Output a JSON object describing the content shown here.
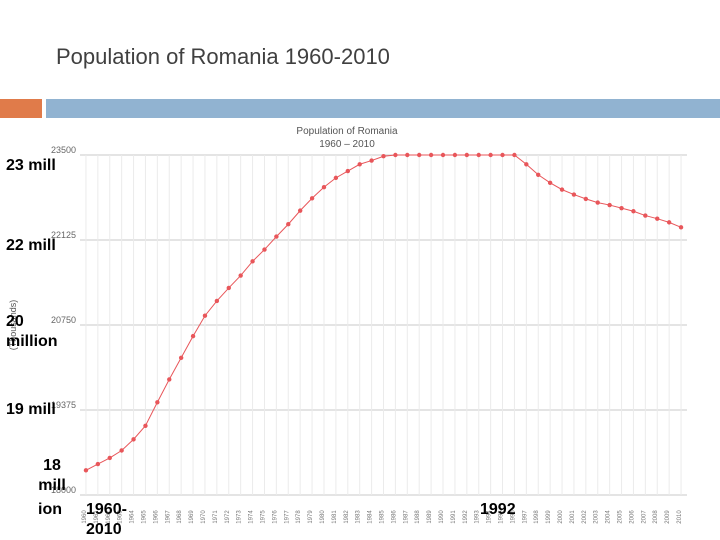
{
  "slide": {
    "title": "Population of Romania 1960-2010",
    "accent_orange": "#E07B4A",
    "accent_blue": "#91B3D1"
  },
  "overlay_labels": {
    "l23": "23 mill",
    "l22": "22 mill",
    "l20": "20 million",
    "l19": "19 mill",
    "l18": "18 mill",
    "l18_suffix": "ion",
    "l1960": "1960-2010",
    "l1992": "1992"
  },
  "chart_data": {
    "type": "line",
    "title": "Population of Romania",
    "subtitle": "1960 – 2010",
    "ylabel": "(Thousands)",
    "xlabel": "",
    "ylim": [
      18000,
      23500
    ],
    "yticks": [
      18000,
      19375,
      20750,
      22125,
      23500
    ],
    "ytick_labels": [
      "18000",
      "19375",
      "20750",
      "22125",
      "23500"
    ],
    "grid": true,
    "line_color": "#E8565A",
    "x": [
      1960,
      1961,
      1962,
      1963,
      1964,
      1965,
      1966,
      1967,
      1968,
      1969,
      1970,
      1971,
      1972,
      1973,
      1974,
      1975,
      1976,
      1977,
      1978,
      1979,
      1980,
      1981,
      1982,
      1983,
      1984,
      1985,
      1986,
      1987,
      1988,
      1989,
      1990,
      1991,
      1992,
      1993,
      1994,
      1995,
      1996,
      1997,
      1998,
      1999,
      2000,
      2001,
      2002,
      2003,
      2004,
      2005,
      2006,
      2007,
      2008,
      2009,
      2010
    ],
    "x_labels": [
      "1960",
      "1961",
      "1962",
      "1963",
      "1964",
      "1965",
      "1966",
      "1967",
      "1968",
      "1969",
      "1970",
      "1971",
      "1972",
      "1973",
      "1974",
      "1975",
      "1976",
      "1977",
      "1978",
      "1979",
      "1980",
      "1981",
      "1982",
      "1983",
      "1984",
      "1985",
      "1986",
      "1987",
      "1988",
      "1989",
      "1990",
      "1991",
      "1992",
      "1993",
      "1994",
      "1995",
      "1996",
      "1997",
      "1998",
      "1999",
      "2000",
      "2001",
      "2002",
      "2003",
      "2004",
      "2005",
      "2006",
      "2007",
      "2008",
      "2009",
      "2010"
    ],
    "series": [
      {
        "values": [
          18400,
          18500,
          18600,
          18720,
          18900,
          19120,
          19500,
          19870,
          20220,
          20570,
          20900,
          21140,
          21350,
          21550,
          21780,
          21970,
          22180,
          22380,
          22600,
          22800,
          22980,
          23130,
          23240,
          23350,
          23410,
          23480,
          23600,
          23730,
          23850,
          23950,
          24010,
          24020,
          23990,
          23920,
          23800,
          23680,
          23510,
          23350,
          23180,
          23050,
          22940,
          22860,
          22790,
          22730,
          22690,
          22640,
          22590,
          22520,
          22470,
          22410,
          22330
        ]
      }
    ]
  }
}
